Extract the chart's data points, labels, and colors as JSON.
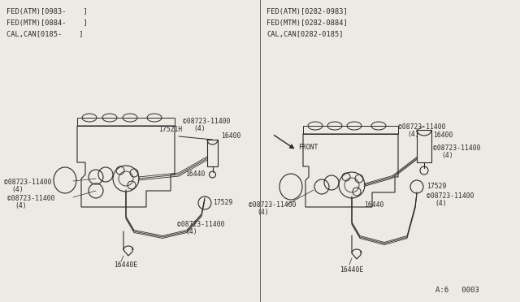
{
  "bg_color": "#ede9e3",
  "line_color": "#2a2a2a",
  "text_color": "#2a2a2a",
  "left_header": [
    "FED(ATM)[0983-    ]",
    "FED(MTM)[0884-    ]",
    "CAL,CAN[0185-    ]"
  ],
  "right_header": [
    "FED(ATM)[0282-0983]",
    "FED(MTM)[0282-0884]",
    "CAL,CAN[0282-0185]"
  ],
  "footer": "A:6   0003",
  "font_size_header": 6.2,
  "font_size_label": 5.8,
  "font_size_footer": 6.5
}
